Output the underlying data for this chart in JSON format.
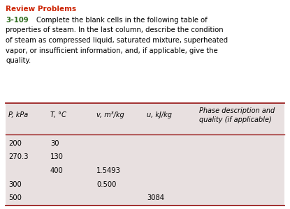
{
  "title": "Review Problems",
  "title_color": "#cc2200",
  "problem_number": "3–109",
  "problem_number_color": "#2e6b1e",
  "body_text": "Complete the blank cells in the following table of properties of steam. In the last column, describe the condition of steam as compressed liquid, saturated mixture, superheated vapor, or insufficient information, and, if applicable, give the quality.",
  "background_color": "white",
  "table_bg": "#e8e0e0",
  "header_line_color": "#9b2020",
  "col_headers": [
    "P, kPa",
    "T, °C",
    "v, m³/kg",
    "u, kJ/kg",
    "Phase description and\nquality (if applicable)"
  ],
  "rows": [
    [
      "200",
      "30",
      "",
      "",
      ""
    ],
    [
      "270.3",
      "130",
      "",
      "",
      ""
    ],
    [
      "",
      "400",
      "1.5493",
      "",
      ""
    ],
    [
      "300",
      "",
      "0.500",
      "",
      ""
    ],
    [
      "500",
      "",
      "",
      "3084",
      ""
    ]
  ],
  "title_fontsize": 7.5,
  "problem_number_fontsize": 7.2,
  "body_fontsize": 7.2,
  "header_fontsize": 7.0,
  "table_fontsize": 7.2,
  "text_block_lines": [
    "Complete the blank cells in the following table of",
    "properties of steam. In the last column, describe the condition",
    "of steam as compressed liquid, saturated mixture, superheated",
    "vapor, or insufficient information, and, if applicable, give the",
    "quality."
  ]
}
